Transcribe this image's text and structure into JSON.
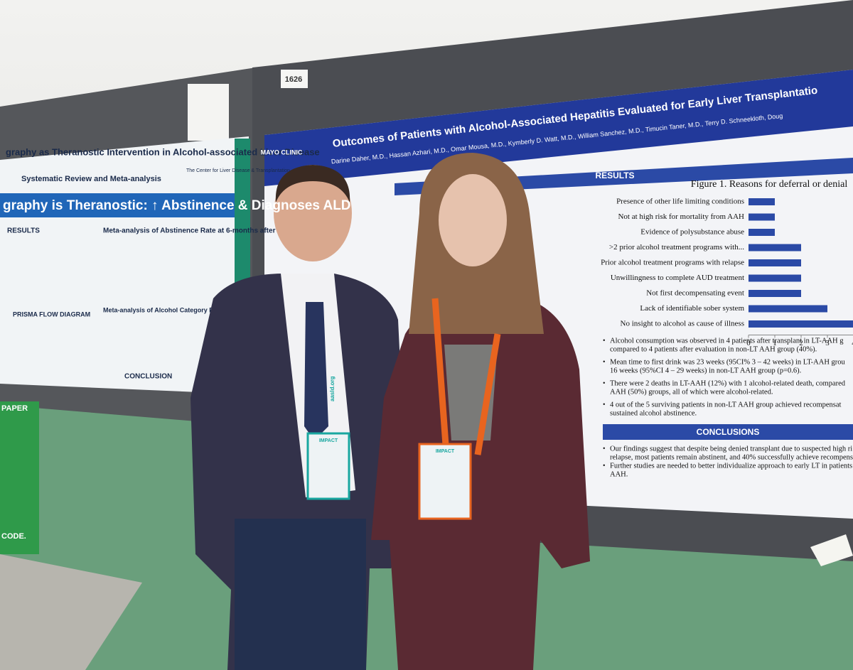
{
  "booth_number": "1626",
  "left_poster": {
    "title": "graphy as Theranostic Intervention in Alcohol-associated Liver Disease",
    "subtitle": "Systematic Review and Meta-analysis",
    "logo": "The Center for Liver Disease & Transplantation",
    "banner": "graphy is Theranostic: ↑ Abstinence & Diagnoses ALD",
    "sections": [
      "RESULTS",
      "Meta-analysis of Abstinence Rate at 6-months after TE",
      "PRISMA FLOW DIAGRAM",
      "Meta-analysis of Alcohol Category Reduction Rate at 6-mo",
      "CONCLUSION"
    ]
  },
  "right_poster": {
    "logo": "MAYO CLINIC",
    "title": "Outcomes of Patients with Alcohol-Associated Hepatitis Evaluated for Early Liver Transplantatio",
    "authors": "Darine Daher, M.D., Hassan Azhari, M.D., Omar Mousa, M.D., Kymberly D. Watt, M.D., William Sanchez, M.D., Timucin Taner, M.D., Terry D. Schneekloth, Doug",
    "results_header": "RESULTS",
    "figure": {
      "title": "Figure 1. Reasons for deferral or denial",
      "categories": [
        "Presence of other life limiting conditions",
        "Not at high risk for mortality from AAH",
        "Evidence of polysubstance abuse",
        ">2 prior alcohol treatment programs with...",
        "Prior alcohol treatment programs with relapse",
        "Unwillingness to complete AUD treatment",
        "Not first decompensating event",
        "Lack of identifiable sober system",
        "No insight to alcohol as cause of illness"
      ],
      "values": [
        1,
        1,
        1,
        2,
        2,
        2,
        2,
        3,
        4
      ],
      "color": "#2b4aa6",
      "xlim": [
        0,
        4
      ],
      "xticks": [
        0,
        1,
        2,
        3,
        4
      ]
    },
    "bullets": [
      [
        "Alcohol consumption was observed in 4 patients after transplant in LT-AAH g",
        "compared to 4 patients after evaluation in non-LT AAH group (40%)."
      ],
      [
        "Mean time to first drink was 23 weeks (95CI% 3 – 42 weeks) in LT-AAH grou",
        "16 weeks (95%CI 4 – 29 weeks) in non-LT AAH group (p=0.6)."
      ],
      [
        "There were 2 deaths in LT-AAH (12%) with 1 alcohol-related death, compared",
        "AAH (50%) groups, all of which were alcohol-related."
      ],
      [
        "4 out of the 5 surviving patients in non-LT AAH group achieved recompensat",
        "sustained alcohol abstinence."
      ]
    ],
    "conclusions_header": "CONCLUSIONS",
    "conclusions": [
      [
        "Our findings suggest that despite being denied transplant due to suspected high ri",
        "relapse, most patients remain abstinent, and 40% successfully achieve recompens"
      ],
      [
        "Further studies are needed to better individualize approach to early LT in patients",
        "AAH."
      ]
    ]
  },
  "lanyard": "aasld.org",
  "badge": "IMPACT",
  "sign": [
    "PAPER",
    "CODE."
  ]
}
